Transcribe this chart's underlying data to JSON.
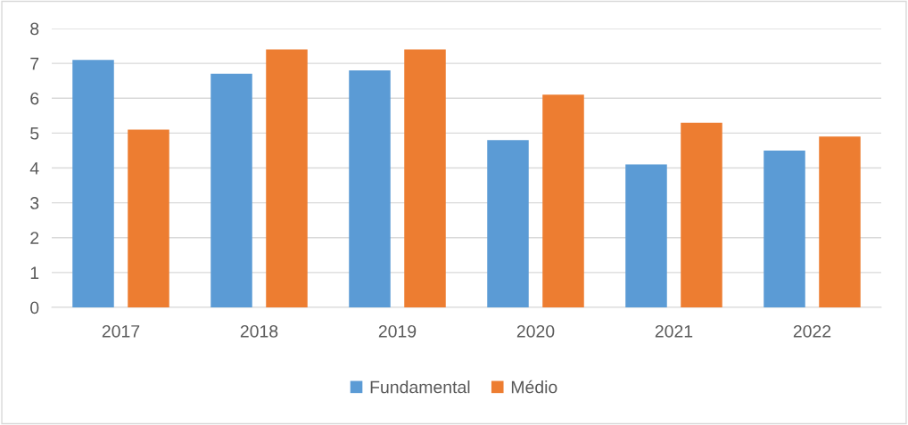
{
  "chart_data": {
    "type": "bar",
    "categories": [
      "2017",
      "2018",
      "2019",
      "2020",
      "2021",
      "2022"
    ],
    "series": [
      {
        "name": "Fundamental",
        "color": "#5b9bd5",
        "values": [
          7.1,
          6.7,
          6.8,
          4.8,
          4.1,
          4.5
        ]
      },
      {
        "name": "Médio",
        "color": "#ed7d31",
        "values": [
          5.1,
          7.4,
          7.4,
          6.1,
          5.3,
          4.9
        ]
      }
    ],
    "ylim": [
      0,
      8
    ],
    "yticks": [
      0,
      1,
      2,
      3,
      4,
      5,
      6,
      7,
      8
    ],
    "grid": "y",
    "legend": "bottom"
  }
}
